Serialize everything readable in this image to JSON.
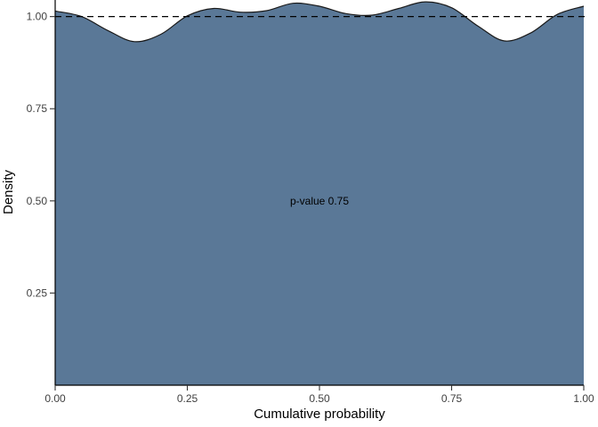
{
  "chart_data": {
    "type": "area",
    "title": "",
    "xlabel": "Cumulative probability",
    "ylabel": "Density",
    "xlim": [
      0,
      1
    ],
    "ylim": [
      0,
      1.045
    ],
    "grid": false,
    "legend": "none",
    "background": "#ffffff",
    "x_ticks": [
      {
        "value": 0.0,
        "label": "0.00"
      },
      {
        "value": 0.25,
        "label": "0.25"
      },
      {
        "value": 0.5,
        "label": "0.50"
      },
      {
        "value": 0.75,
        "label": "0.75"
      },
      {
        "value": 1.0,
        "label": "1.00"
      }
    ],
    "y_ticks": [
      {
        "value": 0.25,
        "label": "0.25"
      },
      {
        "value": 0.5,
        "label": "0.50"
      },
      {
        "value": 0.75,
        "label": "0.75"
      },
      {
        "value": 1.0,
        "label": "1.00"
      }
    ],
    "series": [
      {
        "name": "density",
        "x": [
          0.0,
          0.05,
          0.1,
          0.15,
          0.2,
          0.25,
          0.3,
          0.35,
          0.4,
          0.45,
          0.5,
          0.55,
          0.6,
          0.65,
          0.7,
          0.75,
          0.8,
          0.85,
          0.9,
          0.95,
          1.0
        ],
        "y": [
          1.015,
          1.0,
          0.962,
          0.932,
          0.952,
          1.002,
          1.022,
          1.012,
          1.016,
          1.036,
          1.028,
          1.008,
          1.004,
          1.022,
          1.04,
          1.024,
          0.974,
          0.934,
          0.956,
          1.006,
          1.028
        ]
      }
    ],
    "reference_line": {
      "y": 1.0,
      "style": "dashed",
      "color": "#000000"
    },
    "annotation": {
      "text": "p-value 0.75",
      "x": 0.5,
      "y": 0.49
    },
    "colors": {
      "fill": "#5a7897",
      "outline": "#1a1a1a",
      "axis": "#000000",
      "tick": "#333333",
      "tick_label": "#404040",
      "title": "#000000"
    }
  }
}
